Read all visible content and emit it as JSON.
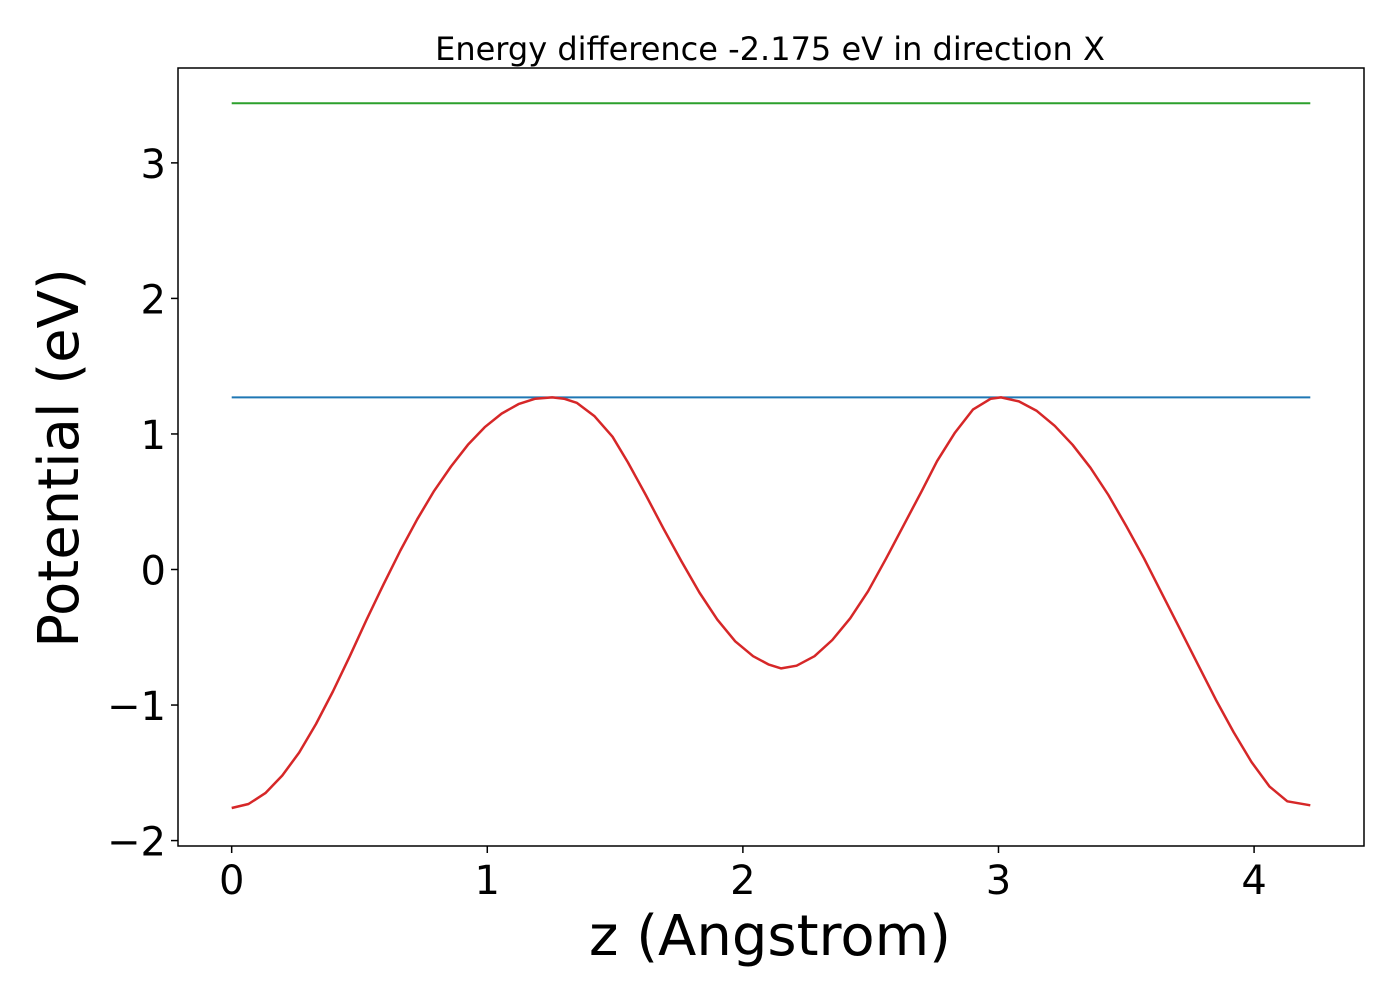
{
  "chart_data": {
    "type": "line",
    "title": "Energy difference -2.175 eV in direction X",
    "xlabel": "z (Angstrom)",
    "ylabel": "Potential (eV)",
    "xlim": [
      -0.21,
      4.43
    ],
    "ylim": [
      -2.04,
      3.7
    ],
    "xticks": [
      0,
      1,
      2,
      3,
      4
    ],
    "xtick_labels": [
      "0",
      "1",
      "2",
      "3",
      "4"
    ],
    "yticks": [
      -2,
      -1,
      0,
      1,
      2,
      3
    ],
    "ytick_labels": [
      "−2",
      "−1",
      "0",
      "1",
      "2",
      "3"
    ],
    "grid": false,
    "series": [
      {
        "color": "#2ca02c",
        "x": [
          0,
          4.22
        ],
        "y": [
          3.44,
          3.44
        ]
      },
      {
        "color": "#1f77b4",
        "x": [
          0,
          4.22
        ],
        "y": [
          1.27,
          1.27
        ]
      },
      {
        "color": "#d62728",
        "x": [
          0.0,
          0.066,
          0.132,
          0.198,
          0.264,
          0.33,
          0.396,
          0.462,
          0.528,
          0.594,
          0.66,
          0.726,
          0.792,
          0.858,
          0.924,
          0.99,
          1.056,
          1.122,
          1.188,
          1.254,
          1.3,
          1.35,
          1.42,
          1.49,
          1.55,
          1.62,
          1.69,
          1.76,
          1.83,
          1.9,
          1.97,
          2.04,
          2.1,
          2.15,
          2.21,
          2.28,
          2.35,
          2.42,
          2.49,
          2.56,
          2.63,
          2.7,
          2.76,
          2.83,
          2.9,
          2.97,
          3.01,
          3.08,
          3.15,
          3.22,
          3.29,
          3.36,
          3.43,
          3.5,
          3.57,
          3.64,
          3.71,
          3.78,
          3.85,
          3.92,
          3.99,
          4.06,
          4.13,
          4.22
        ],
        "y": [
          -1.76,
          -1.73,
          -1.65,
          -1.52,
          -1.35,
          -1.14,
          -0.9,
          -0.64,
          -0.37,
          -0.11,
          0.14,
          0.37,
          0.58,
          0.76,
          0.92,
          1.05,
          1.15,
          1.22,
          1.26,
          1.27,
          1.26,
          1.23,
          1.13,
          0.98,
          0.79,
          0.55,
          0.3,
          0.06,
          -0.17,
          -0.37,
          -0.53,
          -0.64,
          -0.7,
          -0.73,
          -0.71,
          -0.64,
          -0.52,
          -0.36,
          -0.16,
          0.08,
          0.33,
          0.58,
          0.8,
          1.01,
          1.18,
          1.26,
          1.27,
          1.24,
          1.17,
          1.06,
          0.92,
          0.75,
          0.55,
          0.32,
          0.08,
          -0.18,
          -0.44,
          -0.7,
          -0.96,
          -1.2,
          -1.42,
          -1.6,
          -1.71,
          -1.74
        ]
      }
    ]
  }
}
